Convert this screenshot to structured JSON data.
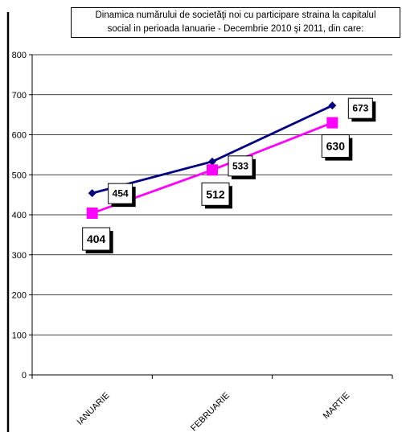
{
  "chart_data": {
    "type": "line",
    "title_lines": [
      "Dinamica numărului de societăţi noi cu participare straina la capitalul",
      "social in perioada Ianuarie - Decembrie 2010 şi 2011, din care:"
    ],
    "categories": [
      "IANUARIE",
      "FEBRUARIE",
      "MARTIE"
    ],
    "series": [
      {
        "values": [
          454,
          533,
          673
        ],
        "color": "#000080",
        "marker": "diamond",
        "labels": [
          "454",
          "533",
          "673"
        ]
      },
      {
        "values": [
          404,
          512,
          630
        ],
        "color": "#ff00ff",
        "marker": "square",
        "labels": [
          "404",
          "512",
          "630"
        ]
      }
    ],
    "ylim": [
      0,
      800
    ],
    "y_ticks": [
      "0",
      "100",
      "200",
      "300",
      "400",
      "500",
      "600",
      "700",
      "800"
    ],
    "grid": "horizontal",
    "legend": "none"
  }
}
